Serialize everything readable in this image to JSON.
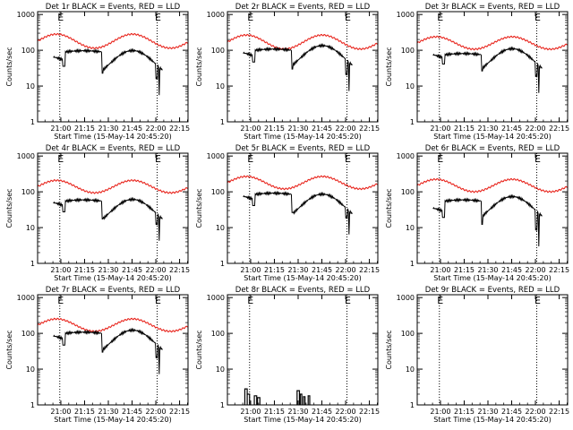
{
  "chart_data": {
    "type": "line",
    "panels": [
      {
        "title": "Det 1r BLACK = Events, RED = LLD"
      },
      {
        "title": "Det 2r BLACK = Events, RED = LLD"
      },
      {
        "title": "Det 3r BLACK = Events, RED = LLD"
      },
      {
        "title": "Det 4r BLACK = Events, RED = LLD"
      },
      {
        "title": "Det 5r BLACK = Events, RED = LLD"
      },
      {
        "title": "Det 6r BLACK = Events, RED = LLD"
      },
      {
        "title": "Det 7r BLACK = Events, RED = LLD"
      },
      {
        "title": "Det 8r BLACK = Events, RED = LLD"
      },
      {
        "title": "Det 9r BLACK = Events, RED = LLD"
      }
    ],
    "xlabel": "Start Time (15-May-14 20:45:20)",
    "ylabel": "Counts/sec",
    "x_unit": "minutes after 20:45:20",
    "xlim": [
      0,
      95
    ],
    "ylim": [
      1,
      1200
    ],
    "y_scale": "log",
    "x_ticks": [
      {
        "value": 14.67,
        "label": "21:00"
      },
      {
        "value": 29.67,
        "label": "21:15"
      },
      {
        "value": 44.67,
        "label": "21:30"
      },
      {
        "value": 59.67,
        "label": "21:45"
      },
      {
        "value": 74.67,
        "label": "22:00"
      },
      {
        "value": 89.67,
        "label": "22:15"
      }
    ],
    "y_ticks": [
      {
        "value": 1,
        "label": "1"
      },
      {
        "value": 10,
        "label": "10"
      },
      {
        "value": 100,
        "label": "100"
      },
      {
        "value": 1000,
        "label": "1000"
      }
    ],
    "markers": [
      {
        "x": 14,
        "label": "E"
      },
      {
        "x": 75.5,
        "label": "E"
      }
    ],
    "series_styles": {
      "lld": {
        "color": "#e8261e"
      },
      "events": {
        "color": "#000000"
      }
    }
  }
}
